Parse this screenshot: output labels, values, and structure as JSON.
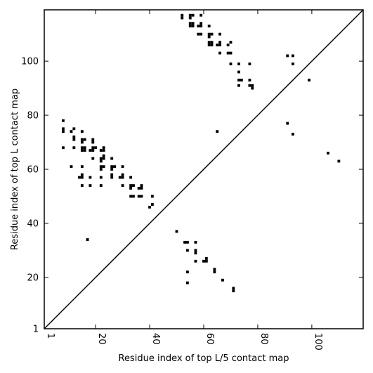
{
  "chart_data": {
    "type": "scatter",
    "title": "",
    "xlabel": "Residue index of top L/5 contact map",
    "ylabel": "Residue index of top L contact map",
    "xlim": [
      1,
      119
    ],
    "ylim": [
      1,
      119
    ],
    "x_ticks": [
      1,
      20,
      40,
      60,
      80,
      100
    ],
    "y_ticks": [
      1,
      20,
      40,
      60,
      80,
      100
    ],
    "x_tick_labels": [
      "1",
      "20",
      "40",
      "60",
      "80",
      "100"
    ],
    "y_tick_labels": [
      "1",
      "20",
      "40",
      "60",
      "80",
      "100"
    ],
    "x_tick_rotation": "vertical",
    "grid": false,
    "diagonal_line": true,
    "marker": "square",
    "marker_color": "#000000",
    "series": [
      {
        "values": [
          [
            8,
            78
          ],
          [
            8,
            75
          ],
          [
            8,
            74
          ],
          [
            8,
            68
          ],
          [
            11,
            74
          ],
          [
            11,
            61
          ],
          [
            12,
            75
          ],
          [
            12,
            72
          ],
          [
            12,
            71
          ],
          [
            12,
            68
          ],
          [
            14,
            57
          ],
          [
            15,
            74
          ],
          [
            15,
            71
          ],
          [
            15,
            70
          ],
          [
            15,
            68
          ],
          [
            15,
            67
          ],
          [
            15,
            61
          ],
          [
            15,
            58
          ],
          [
            15,
            57
          ],
          [
            15,
            54
          ],
          [
            16,
            71
          ],
          [
            16,
            68
          ],
          [
            16,
            67
          ],
          [
            17,
            34
          ],
          [
            18,
            67
          ],
          [
            18,
            57
          ],
          [
            18,
            54
          ],
          [
            19,
            71
          ],
          [
            19,
            70
          ],
          [
            19,
            68
          ],
          [
            19,
            67
          ],
          [
            19,
            64
          ],
          [
            20,
            68
          ],
          [
            22,
            67
          ],
          [
            22,
            64
          ],
          [
            22,
            63
          ],
          [
            22,
            61
          ],
          [
            22,
            60
          ],
          [
            22,
            57
          ],
          [
            22,
            54
          ],
          [
            23,
            68
          ],
          [
            23,
            67
          ],
          [
            23,
            65
          ],
          [
            23,
            64
          ],
          [
            23,
            61
          ],
          [
            26,
            64
          ],
          [
            26,
            61
          ],
          [
            26,
            60
          ],
          [
            26,
            58
          ],
          [
            26,
            57
          ],
          [
            27,
            61
          ],
          [
            29,
            57
          ],
          [
            30,
            61
          ],
          [
            30,
            58
          ],
          [
            30,
            57
          ],
          [
            30,
            54
          ],
          [
            33,
            57
          ],
          [
            33,
            54
          ],
          [
            33,
            53
          ],
          [
            33,
            50
          ],
          [
            34,
            54
          ],
          [
            34,
            50
          ],
          [
            36,
            53
          ],
          [
            36,
            50
          ],
          [
            37,
            54
          ],
          [
            37,
            53
          ],
          [
            37,
            50
          ],
          [
            40,
            46
          ],
          [
            41,
            50
          ],
          [
            41,
            47
          ],
          [
            50,
            37
          ],
          [
            52,
            117
          ],
          [
            52,
            116
          ],
          [
            53,
            33
          ],
          [
            54,
            33
          ],
          [
            54,
            30
          ],
          [
            54,
            22
          ],
          [
            54,
            18
          ],
          [
            55,
            117
          ],
          [
            55,
            116
          ],
          [
            55,
            114
          ],
          [
            55,
            113
          ],
          [
            56,
            117
          ],
          [
            56,
            114
          ],
          [
            56,
            113
          ],
          [
            57,
            33
          ],
          [
            57,
            30
          ],
          [
            57,
            29
          ],
          [
            57,
            26
          ],
          [
            58,
            113
          ],
          [
            58,
            110
          ],
          [
            59,
            117
          ],
          [
            59,
            114
          ],
          [
            59,
            113
          ],
          [
            59,
            110
          ],
          [
            60,
            26
          ],
          [
            61,
            27
          ],
          [
            61,
            26
          ],
          [
            62,
            113
          ],
          [
            62,
            110
          ],
          [
            62,
            109
          ],
          [
            62,
            107
          ],
          [
            62,
            106
          ],
          [
            63,
            110
          ],
          [
            63,
            107
          ],
          [
            63,
            106
          ],
          [
            64,
            23
          ],
          [
            64,
            22
          ],
          [
            65,
            106
          ],
          [
            65,
            74
          ],
          [
            66,
            110
          ],
          [
            66,
            107
          ],
          [
            66,
            106
          ],
          [
            66,
            103
          ],
          [
            67,
            19
          ],
          [
            69,
            106
          ],
          [
            69,
            103
          ],
          [
            70,
            107
          ],
          [
            70,
            103
          ],
          [
            70,
            99
          ],
          [
            71,
            16
          ],
          [
            71,
            15
          ],
          [
            73,
            99
          ],
          [
            73,
            96
          ],
          [
            73,
            93
          ],
          [
            73,
            91
          ],
          [
            74,
            93
          ],
          [
            77,
            99
          ],
          [
            77,
            93
          ],
          [
            77,
            91
          ],
          [
            78,
            91
          ],
          [
            78,
            90
          ],
          [
            91,
            102
          ],
          [
            91,
            77
          ],
          [
            93,
            102
          ],
          [
            93,
            99
          ],
          [
            93,
            73
          ],
          [
            99,
            93
          ],
          [
            106,
            66
          ],
          [
            110,
            63
          ]
        ]
      }
    ]
  }
}
